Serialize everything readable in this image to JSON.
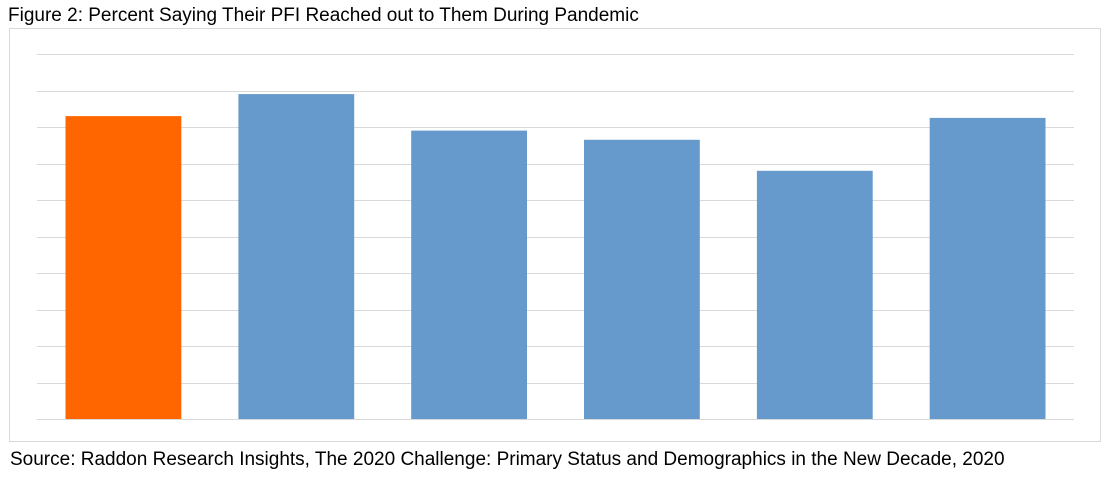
{
  "figure": {
    "title": "Figure 2: Percent Saying Their PFI Reached out to Them During Pandemic",
    "source": "Source: Raddon Research Insights, The 2020 Challenge: Primary Status and Demographics in the New Decade, 2020"
  },
  "chart_data": {
    "type": "bar",
    "categories": [
      "",
      "",
      "",
      "",
      "",
      ""
    ],
    "values": [
      83,
      89,
      79,
      76.5,
      68,
      82.5
    ],
    "ylim": [
      0,
      100
    ],
    "grid": true,
    "legend": "none",
    "colors": {
      "highlight": "#FF6600",
      "bar": "#6699CC",
      "grid": "#D9D9D9"
    },
    "highlight_index": 0
  }
}
